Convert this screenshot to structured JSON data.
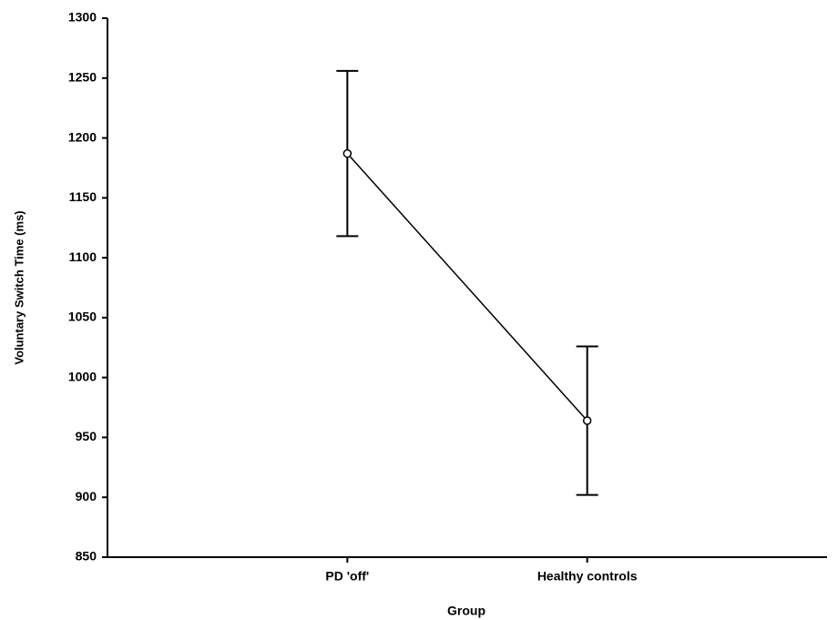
{
  "chart_data": {
    "type": "line",
    "x_label": "Group",
    "y_label": "Voluntary Switch Time (ms)",
    "categories": [
      "PD 'off'",
      "Healthy controls"
    ],
    "values": [
      1187,
      964
    ],
    "errors": [
      69,
      62
    ],
    "color": "#000000",
    "ylim": [
      850,
      1300
    ],
    "yticks": [
      850,
      900,
      950,
      1000,
      1050,
      1100,
      1150,
      1200,
      1250,
      1300
    ],
    "grid": false
  }
}
